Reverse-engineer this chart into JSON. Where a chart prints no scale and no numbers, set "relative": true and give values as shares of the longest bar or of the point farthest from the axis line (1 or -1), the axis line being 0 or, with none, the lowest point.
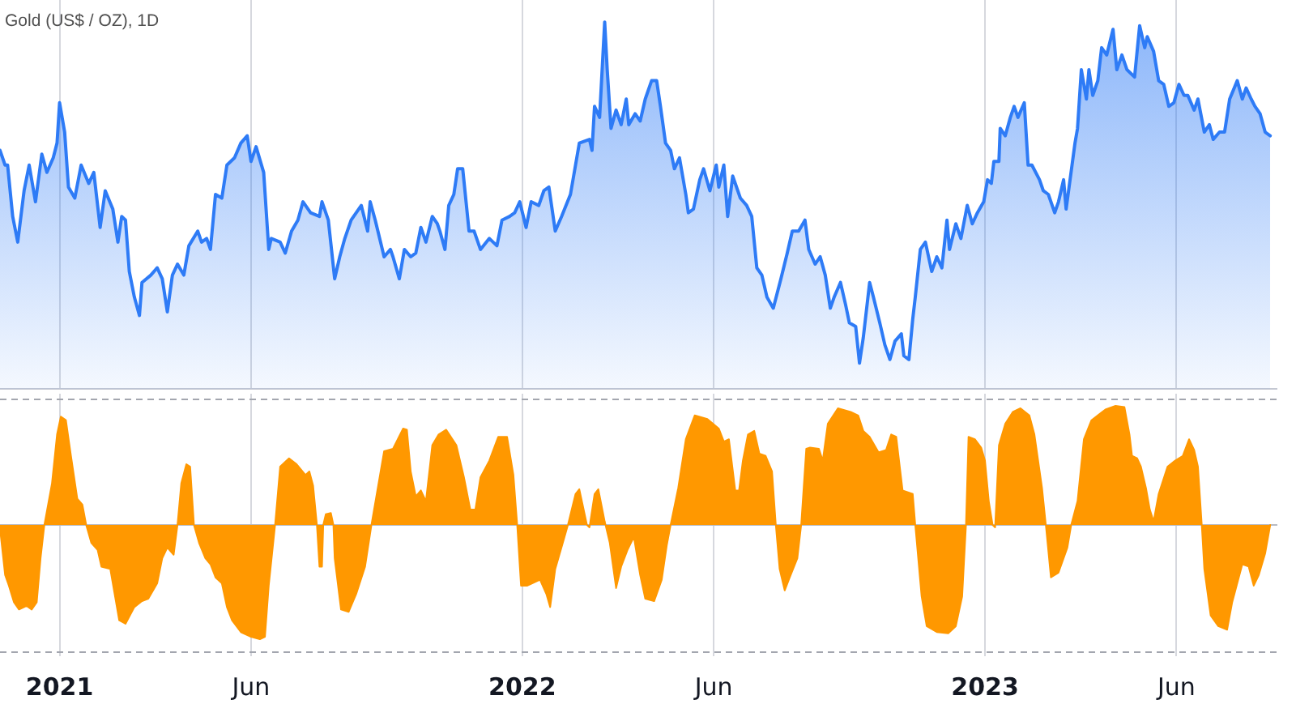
{
  "chart_data": [
    {
      "type": "area",
      "title": "Gold (US$ / OZ), 1D",
      "relative": true,
      "grid": "x",
      "tick_labels": false,
      "xlim": [
        "2020-11-15",
        "2023-08-19"
      ],
      "xticks": [
        {
          "value": "2021-01-01",
          "label": null
        },
        {
          "value": "2021-06-01",
          "label": null
        },
        {
          "value": "2022-01-01",
          "label": null
        },
        {
          "value": "2022-06-01",
          "label": null
        },
        {
          "value": "2023-01-01",
          "label": null
        },
        {
          "value": "2023-06-01",
          "label": null
        }
      ],
      "x": [
        "2020-11-15",
        "2020-11-19",
        "2020-11-21",
        "2020-11-25",
        "2020-11-29",
        "2020-12-04",
        "2020-12-08",
        "2020-12-13",
        "2020-12-18",
        "2020-12-22",
        "2020-12-27",
        "2020-12-30",
        "2021-01-01",
        "2021-01-05",
        "2021-01-08",
        "2021-01-13",
        "2021-01-18",
        "2021-01-24",
        "2021-01-28",
        "2021-02-02",
        "2021-02-06",
        "2021-02-12",
        "2021-02-16",
        "2021-02-19",
        "2021-02-22",
        "2021-02-25",
        "2021-03-01",
        "2021-03-05",
        "2021-03-07",
        "2021-03-14",
        "2021-03-19",
        "2021-03-23",
        "2021-03-27",
        "2021-03-31",
        "2021-04-04",
        "2021-04-09",
        "2021-04-13",
        "2021-04-20",
        "2021-04-23",
        "2021-04-27",
        "2021-04-30",
        "2021-05-04",
        "2021-05-09",
        "2021-05-13",
        "2021-05-19",
        "2021-05-24",
        "2021-05-29",
        "2021-06-01",
        "2021-06-05",
        "2021-06-11",
        "2021-06-15",
        "2021-06-17",
        "2021-06-24",
        "2021-06-28",
        "2021-07-03",
        "2021-07-08",
        "2021-07-12",
        "2021-07-18",
        "2021-07-25",
        "2021-07-27",
        "2021-08-01",
        "2021-08-06",
        "2021-08-10",
        "2021-08-14",
        "2021-08-19",
        "2021-08-27",
        "2021-09-01",
        "2021-09-03",
        "2021-09-07",
        "2021-09-14",
        "2021-09-19",
        "2021-09-21",
        "2021-09-26",
        "2021-09-30",
        "2021-10-05",
        "2021-10-09",
        "2021-10-13",
        "2021-10-17",
        "2021-10-22",
        "2021-10-26",
        "2021-10-28",
        "2021-11-01",
        "2021-11-04",
        "2021-11-08",
        "2021-11-11",
        "2021-11-15",
        "2021-11-20",
        "2021-11-24",
        "2021-11-29",
        "2021-12-06",
        "2021-12-12",
        "2021-12-16",
        "2021-12-22",
        "2021-12-26",
        "2021-12-30",
        "2022-01-04",
        "2022-01-08",
        "2022-01-14",
        "2022-01-18",
        "2022-01-22",
        "2022-01-27",
        "2022-02-01",
        "2022-02-08",
        "2022-02-12",
        "2022-02-15",
        "2022-02-23",
        "2022-02-25",
        "2022-02-27",
        "2022-03-03",
        "2022-03-07",
        "2022-03-09",
        "2022-03-12",
        "2022-03-16",
        "2022-03-20",
        "2022-03-24",
        "2022-03-26",
        "2022-03-31",
        "2022-04-04",
        "2022-04-08",
        "2022-04-13",
        "2022-04-17",
        "2022-04-20",
        "2022-04-24",
        "2022-04-28",
        "2022-05-01",
        "2022-05-05",
        "2022-05-10",
        "2022-05-12",
        "2022-05-16",
        "2022-05-21",
        "2022-05-24",
        "2022-05-29",
        "2022-06-03",
        "2022-06-05",
        "2022-06-09",
        "2022-06-12",
        "2022-06-16",
        "2022-06-22",
        "2022-06-27",
        "2022-07-01",
        "2022-07-05",
        "2022-07-09",
        "2022-07-13",
        "2022-07-18",
        "2022-07-24",
        "2022-07-29",
        "2022-08-02",
        "2022-08-07",
        "2022-08-12",
        "2022-08-15",
        "2022-08-20",
        "2022-08-24",
        "2022-08-28",
        "2022-09-01",
        "2022-09-04",
        "2022-09-09",
        "2022-09-13",
        "2022-09-16",
        "2022-09-21",
        "2022-09-24",
        "2022-09-27",
        "2022-10-02",
        "2022-10-05",
        "2022-10-10",
        "2022-10-14",
        "2022-10-18",
        "2022-10-22",
        "2022-10-27",
        "2022-10-29",
        "2022-11-02",
        "2022-11-05",
        "2022-11-07",
        "2022-11-11",
        "2022-11-15",
        "2022-11-20",
        "2022-11-24",
        "2022-11-28",
        "2022-12-02",
        "2022-12-04",
        "2022-12-09",
        "2022-12-13",
        "2022-12-18",
        "2022-12-22",
        "2022-12-26",
        "2022-12-31",
        "2023-01-03",
        "2023-01-06",
        "2023-01-08",
        "2023-01-12",
        "2023-01-13",
        "2023-01-17",
        "2023-01-21",
        "2023-01-24",
        "2023-01-27",
        "2023-02-01",
        "2023-02-04",
        "2023-02-07",
        "2023-02-13",
        "2023-02-16",
        "2023-02-20",
        "2023-02-25",
        "2023-02-28",
        "2023-03-04",
        "2023-03-06",
        "2023-03-13",
        "2023-03-15",
        "2023-03-18",
        "2023-03-22",
        "2023-03-24",
        "2023-03-27",
        "2023-03-31",
        "2023-04-03",
        "2023-04-07",
        "2023-04-12",
        "2023-04-15",
        "2023-04-19",
        "2023-04-23",
        "2023-04-29",
        "2023-05-03",
        "2023-05-07",
        "2023-05-09",
        "2023-05-14",
        "2023-05-18",
        "2023-05-22",
        "2023-05-26",
        "2023-05-30",
        "2023-06-03",
        "2023-06-07",
        "2023-06-10",
        "2023-06-15",
        "2023-06-18",
        "2023-06-23",
        "2023-06-27",
        "2023-06-30",
        "2023-07-05",
        "2023-07-09",
        "2023-07-13",
        "2023-07-19",
        "2023-07-23",
        "2023-07-26",
        "2023-07-30",
        "2023-08-02",
        "2023-08-06",
        "2023-08-10",
        "2023-08-14"
      ],
      "series": [
        {
          "color": "#2e7bf6",
          "values": [
            0.65,
            0.61,
            0.61,
            0.47,
            0.4,
            0.54,
            0.61,
            0.51,
            0.64,
            0.59,
            0.63,
            0.67,
            0.78,
            0.7,
            0.55,
            0.52,
            0.61,
            0.56,
            0.59,
            0.44,
            0.54,
            0.49,
            0.4,
            0.47,
            0.46,
            0.32,
            0.25,
            0.2,
            0.29,
            0.31,
            0.33,
            0.3,
            0.21,
            0.31,
            0.34,
            0.31,
            0.39,
            0.43,
            0.4,
            0.41,
            0.38,
            0.53,
            0.52,
            0.61,
            0.63,
            0.67,
            0.69,
            0.62,
            0.66,
            0.59,
            0.38,
            0.41,
            0.4,
            0.37,
            0.43,
            0.46,
            0.51,
            0.48,
            0.47,
            0.51,
            0.46,
            0.3,
            0.36,
            0.41,
            0.46,
            0.5,
            0.43,
            0.51,
            0.46,
            0.36,
            0.38,
            0.36,
            0.3,
            0.38,
            0.36,
            0.37,
            0.44,
            0.4,
            0.47,
            0.45,
            0.43,
            0.38,
            0.5,
            0.53,
            0.6,
            0.6,
            0.43,
            0.43,
            0.38,
            0.41,
            0.39,
            0.46,
            0.47,
            0.48,
            0.51,
            0.44,
            0.51,
            0.5,
            0.54,
            0.55,
            0.43,
            0.47,
            0.53,
            0.61,
            0.67,
            0.68,
            0.65,
            0.77,
            0.74,
            1.0,
            0.87,
            0.71,
            0.76,
            0.72,
            0.79,
            0.72,
            0.75,
            0.73,
            0.79,
            0.84,
            0.84,
            0.77,
            0.67,
            0.65,
            0.6,
            0.63,
            0.53,
            0.48,
            0.49,
            0.57,
            0.6,
            0.54,
            0.61,
            0.55,
            0.61,
            0.47,
            0.58,
            0.52,
            0.5,
            0.47,
            0.33,
            0.31,
            0.25,
            0.22,
            0.3,
            0.37,
            0.43,
            0.43,
            0.46,
            0.38,
            0.34,
            0.36,
            0.31,
            0.22,
            0.25,
            0.29,
            0.23,
            0.18,
            0.17,
            0.07,
            0.14,
            0.29,
            0.25,
            0.18,
            0.12,
            0.08,
            0.13,
            0.15,
            0.09,
            0.08,
            0.19,
            0.25,
            0.38,
            0.4,
            0.32,
            0.36,
            0.33,
            0.46,
            0.38,
            0.45,
            0.41,
            0.5,
            0.45,
            0.48,
            0.51,
            0.57,
            0.56,
            0.62,
            0.62,
            0.71,
            0.69,
            0.74,
            0.77,
            0.74,
            0.78,
            0.61,
            0.61,
            0.57,
            0.54,
            0.53,
            0.48,
            0.51,
            0.57,
            0.49,
            0.67,
            0.71,
            0.87,
            0.79,
            0.87,
            0.8,
            0.84,
            0.93,
            0.91,
            0.98,
            0.87,
            0.91,
            0.87,
            0.85,
            0.99,
            0.93,
            0.96,
            0.92,
            0.84,
            0.83,
            0.77,
            0.78,
            0.83,
            0.8,
            0.8,
            0.76,
            0.79,
            0.7,
            0.72,
            0.68,
            0.7,
            0.7,
            0.79,
            0.84,
            0.79,
            0.82,
            0.79,
            0.77,
            0.75,
            0.7,
            0.69
          ]
        }
      ]
    },
    {
      "type": "area",
      "relative": true,
      "grid": "x",
      "tick_labels": "x",
      "xlim": [
        "2020-11-15",
        "2023-08-19"
      ],
      "xticks": [
        {
          "value": "2021-01-01",
          "label": "2021"
        },
        {
          "value": "2021-06-01",
          "label": "Jun"
        },
        {
          "value": "2022-01-01",
          "label": "2022"
        },
        {
          "value": "2022-06-01",
          "label": "Jun"
        },
        {
          "value": "2023-01-01",
          "label": "2023"
        },
        {
          "value": "2023-06-01",
          "label": "Jun"
        }
      ],
      "ref_lines": [
        {
          "axis": "y",
          "value": 1.06,
          "color": "#a3a6af",
          "line_style": "dashed"
        },
        {
          "axis": "y",
          "value": -1.06,
          "color": "#a3a6af",
          "line_style": "dashed"
        }
      ],
      "x": [
        "2020-11-15",
        "2020-11-19",
        "2020-11-22",
        "2020-11-26",
        "2020-11-30",
        "2020-12-06",
        "2020-12-10",
        "2020-12-14",
        "2020-12-17",
        "2020-12-20",
        "2020-12-26",
        "2020-12-30",
        "2021-01-02",
        "2021-01-06",
        "2021-01-10",
        "2021-01-15",
        "2021-01-19",
        "2021-01-22",
        "2021-01-26",
        "2021-01-31",
        "2021-02-03",
        "2021-02-10",
        "2021-02-17",
        "2021-02-22",
        "2021-03-01",
        "2021-03-07",
        "2021-03-12",
        "2021-03-19",
        "2021-03-23",
        "2021-03-27",
        "2021-04-01",
        "2021-04-04",
        "2021-04-07",
        "2021-04-11",
        "2021-04-14",
        "2021-04-17",
        "2021-04-21",
        "2021-04-26",
        "2021-04-30",
        "2021-05-04",
        "2021-05-09",
        "2021-05-13",
        "2021-05-17",
        "2021-05-24",
        "2021-06-01",
        "2021-06-08",
        "2021-06-12",
        "2021-06-15",
        "2021-06-20",
        "2021-06-24",
        "2021-07-01",
        "2021-07-07",
        "2021-07-14",
        "2021-07-17",
        "2021-07-20",
        "2021-07-23",
        "2021-07-25",
        "2021-07-27",
        "2021-07-28",
        "2021-07-30",
        "2021-08-03",
        "2021-08-05",
        "2021-08-06",
        "2021-08-11",
        "2021-08-17",
        "2021-08-23",
        "2021-08-30",
        "2021-09-04",
        "2021-09-09",
        "2021-09-14",
        "2021-09-21",
        "2021-09-29",
        "2021-10-02",
        "2021-10-05",
        "2021-10-09",
        "2021-10-13",
        "2021-10-17",
        "2021-10-22",
        "2021-10-27",
        "2021-11-02",
        "2021-11-10",
        "2021-11-16",
        "2021-11-21",
        "2021-11-25",
        "2021-11-29",
        "2021-12-06",
        "2021-12-13",
        "2021-12-20",
        "2021-12-25",
        "2021-12-28",
        "2021-12-31",
        "2022-01-05",
        "2022-01-15",
        "2022-01-20",
        "2022-01-23",
        "2022-01-27",
        "2022-02-02",
        "2022-02-06",
        "2022-02-12",
        "2022-02-15",
        "2022-02-21",
        "2022-02-23",
        "2022-02-27",
        "2022-03-02",
        "2022-03-07",
        "2022-03-11",
        "2022-03-16",
        "2022-03-20",
        "2022-03-25",
        "2022-03-30",
        "2022-04-04",
        "2022-04-08",
        "2022-04-15",
        "2022-04-21",
        "2022-04-25",
        "2022-04-28",
        "2022-05-04",
        "2022-05-10",
        "2022-05-17",
        "2022-05-27",
        "2022-06-05",
        "2022-06-09",
        "2022-06-13",
        "2022-06-18",
        "2022-06-21",
        "2022-06-24",
        "2022-06-28",
        "2022-07-03",
        "2022-07-07",
        "2022-07-12",
        "2022-07-17",
        "2022-07-20",
        "2022-07-23",
        "2022-07-27",
        "2022-07-31",
        "2022-08-06",
        "2022-08-09",
        "2022-08-13",
        "2022-08-16",
        "2022-08-23",
        "2022-08-26",
        "2022-08-30",
        "2022-09-07",
        "2022-09-17",
        "2022-09-23",
        "2022-09-27",
        "2022-10-02",
        "2022-10-09",
        "2022-10-15",
        "2022-10-19",
        "2022-10-23",
        "2022-10-28",
        "2022-11-05",
        "2022-11-07",
        "2022-11-12",
        "2022-11-16",
        "2022-11-24",
        "2022-12-03",
        "2022-12-09",
        "2022-12-14",
        "2022-12-17",
        "2022-12-19",
        "2022-12-24",
        "2022-12-29",
        "2023-01-01",
        "2023-01-04",
        "2023-01-07",
        "2023-01-09",
        "2023-01-12",
        "2023-01-17",
        "2023-01-23",
        "2023-01-29",
        "2023-02-05",
        "2023-02-09",
        "2023-02-15",
        "2023-02-18",
        "2023-02-22",
        "2023-02-28",
        "2023-03-07",
        "2023-03-10",
        "2023-03-15",
        "2023-03-20",
        "2023-03-26",
        "2023-04-06",
        "2023-04-14",
        "2023-04-21",
        "2023-04-25",
        "2023-04-27",
        "2023-05-01",
        "2023-05-04",
        "2023-05-08",
        "2023-05-11",
        "2023-05-14",
        "2023-05-18",
        "2023-05-25",
        "2023-05-31",
        "2023-06-06",
        "2023-06-11",
        "2023-06-15",
        "2023-06-18",
        "2023-06-21",
        "2023-06-23",
        "2023-06-28",
        "2023-07-04",
        "2023-07-11",
        "2023-07-15",
        "2023-07-19",
        "2023-07-23",
        "2023-07-28",
        "2023-08-01",
        "2023-08-05",
        "2023-08-10",
        "2023-08-14"
      ],
      "series": [
        {
          "color": "#ff9800",
          "values": [
            -0.03,
            -0.42,
            -0.51,
            -0.65,
            -0.71,
            -0.68,
            -0.71,
            -0.65,
            -0.28,
            0,
            0.35,
            0.76,
            0.91,
            0.88,
            0.58,
            0.22,
            0.17,
            0,
            -0.15,
            -0.21,
            -0.35,
            -0.37,
            -0.8,
            -0.83,
            -0.69,
            -0.64,
            -0.62,
            -0.49,
            -0.28,
            -0.19,
            -0.25,
            0,
            0.35,
            0.51,
            0.49,
            0,
            -0.15,
            -0.28,
            -0.33,
            -0.44,
            -0.49,
            -0.69,
            -0.8,
            -0.9,
            -0.94,
            -0.96,
            -0.94,
            -0.51,
            0,
            0.49,
            0.56,
            0.51,
            0.42,
            0.45,
            0.33,
            0,
            -0.35,
            -0.35,
            0,
            0.09,
            0.1,
            0,
            -0.28,
            -0.71,
            -0.73,
            -0.58,
            -0.35,
            0,
            0.31,
            0.62,
            0.64,
            0.81,
            0.8,
            0.45,
            0.24,
            0.29,
            0.2,
            0.67,
            0.76,
            0.8,
            0.67,
            0.4,
            0.13,
            0.13,
            0.4,
            0.54,
            0.74,
            0.74,
            0.42,
            0,
            -0.51,
            -0.51,
            -0.46,
            -0.58,
            -0.69,
            -0.37,
            -0.15,
            0,
            0.26,
            0.3,
            0,
            -0.02,
            0.26,
            0.3,
            0.03,
            -0.15,
            -0.53,
            -0.35,
            -0.21,
            -0.1,
            -0.42,
            -0.62,
            -0.64,
            -0.46,
            -0.17,
            0,
            0.31,
            0.72,
            0.92,
            0.89,
            0.81,
            0.7,
            0.72,
            0.29,
            0.29,
            0.54,
            0.76,
            0.79,
            0.6,
            0.58,
            0.45,
            0,
            -0.37,
            -0.55,
            -0.44,
            -0.28,
            0,
            0.64,
            0.65,
            0.64,
            0.54,
            0.85,
            0.98,
            0.95,
            0.92,
            0.79,
            0.74,
            0.61,
            0.63,
            0.76,
            0.74,
            0.29,
            0.26,
            0,
            -0.6,
            -0.85,
            -0.9,
            -0.91,
            -0.85,
            -0.6,
            0,
            0.74,
            0.72,
            0.65,
            0.54,
            0.2,
            0,
            -0.02,
            0.67,
            0.85,
            0.95,
            0.98,
            0.92,
            0.76,
            0.31,
            0,
            -0.44,
            -0.4,
            -0.19,
            0,
            0.2,
            0.72,
            0.88,
            0.97,
            1.0,
            0.99,
            0.76,
            0.58,
            0.56,
            0.49,
            0.31,
            0.13,
            0.03,
            0.26,
            0.49,
            0.54,
            0.58,
            0.72,
            0.63,
            0.49,
            0,
            -0.37,
            -0.76,
            -0.85,
            -0.88,
            -0.65,
            -0.49,
            -0.33,
            -0.35,
            -0.51,
            -0.42,
            -0.24,
            0
          ]
        }
      ]
    }
  ]
}
